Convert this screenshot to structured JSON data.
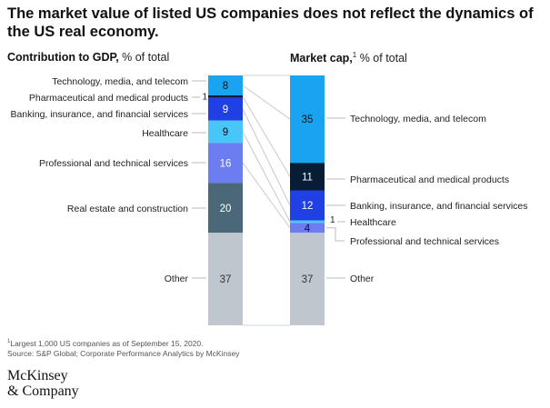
{
  "title": "The market value of listed US companies does not reflect the dynamics of the US real economy.",
  "left_header": {
    "bold": "Contribution to GDP,",
    "rest": " % of total"
  },
  "right_header": {
    "bold": "Market cap,",
    "sup": "1",
    "rest": " % of total"
  },
  "footnote": {
    "sup": "1",
    "text": "Largest 1,000 US companies as of September 15, 2020."
  },
  "source": "Source: S&P Global; Corporate Performance Analytics by McKinsey",
  "logo": {
    "line1": "McKinsey",
    "line2": "& Company"
  },
  "chart_data": {
    "type": "bar",
    "stacked": true,
    "orientation": "vertical",
    "unit": "% of total",
    "columns": [
      {
        "name": "Contribution to GDP",
        "segments": [
          {
            "label": "Technology, media, and telecom",
            "value": 8,
            "color": "#1aa3f0",
            "text_color": "#111111"
          },
          {
            "label": "Pharmaceutical and medical products",
            "value": 1,
            "color": "#071d35",
            "text_color": "#111111",
            "value_outside": true
          },
          {
            "label": "Banking, insurance, and financial services",
            "value": 9,
            "color": "#2140e4",
            "text_color": "#ffffff"
          },
          {
            "label": "Healthcare",
            "value": 9,
            "color": "#49c5f7",
            "text_color": "#111111"
          },
          {
            "label": "Professional and technical services",
            "value": 16,
            "color": "#6b7df0",
            "text_color": "#ffffff"
          },
          {
            "label": "Real estate and construction",
            "value": 20,
            "color": "#4a6878",
            "text_color": "#ffffff"
          },
          {
            "label": "Other",
            "value": 37,
            "color": "#c0c6cd",
            "text_color": "#333333"
          }
        ]
      },
      {
        "name": "Market cap",
        "segments": [
          {
            "label": "Technology, media, and telecom",
            "value": 35,
            "color": "#1aa3f0",
            "text_color": "#111111"
          },
          {
            "label": "Pharmaceutical and medical products",
            "value": 11,
            "color": "#071d35",
            "text_color": "#ffffff"
          },
          {
            "label": "Banking, insurance, and financial services",
            "value": 12,
            "color": "#2140e4",
            "text_color": "#ffffff"
          },
          {
            "label": "Healthcare",
            "value": 1,
            "color": "#49c5f7",
            "text_color": "#111111",
            "value_outside": true
          },
          {
            "label": "Professional and technical services",
            "value": 4,
            "color": "#6b7df0",
            "text_color": "#111111"
          },
          {
            "label": "Other",
            "value": 37,
            "color": "#c0c6cd",
            "text_color": "#333333"
          }
        ]
      }
    ]
  }
}
